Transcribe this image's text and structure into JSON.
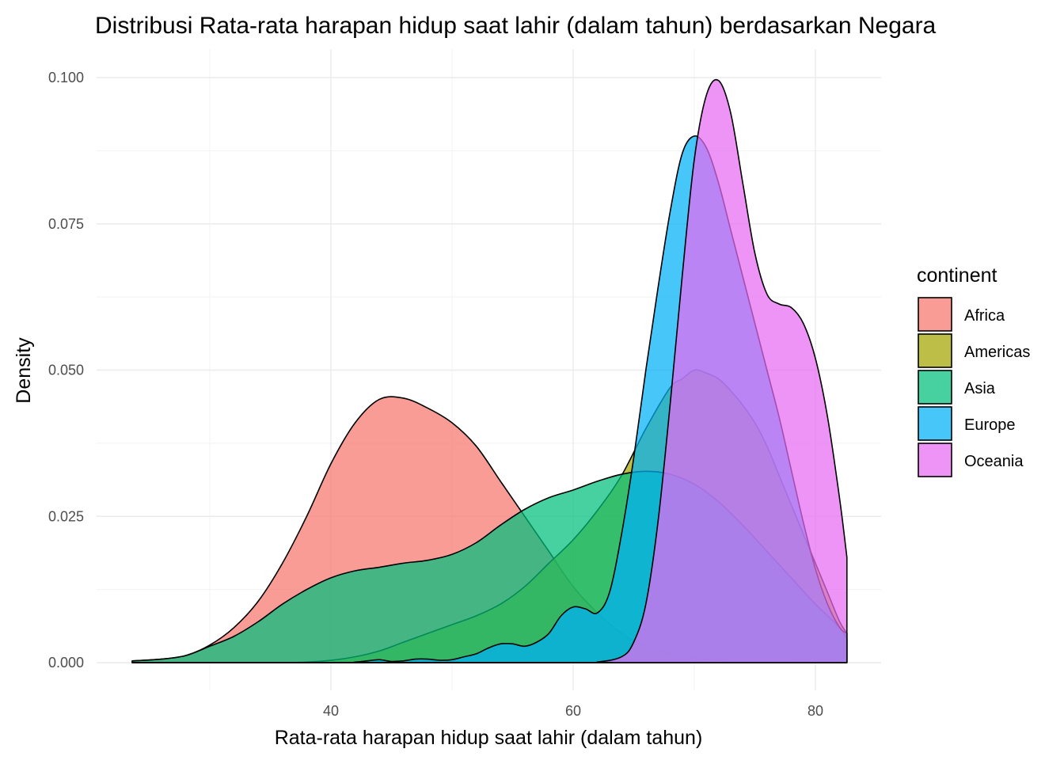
{
  "chart_data": {
    "type": "area",
    "title": "Distribusi Rata-rata harapan hidup saat lahir (dalam tahun) berdasarkan Negara",
    "xlabel": "Rata-rata harapan hidup saat lahir (dalam tahun)",
    "ylabel": "Density",
    "xlim": [
      23.6,
      82.6
    ],
    "ylim": [
      0,
      0.1
    ],
    "x_ticks": [
      40,
      60,
      80
    ],
    "x_tick_labels": [
      "40",
      "60",
      "80"
    ],
    "y_ticks": [
      0,
      0.025,
      0.05,
      0.075,
      0.1
    ],
    "y_tick_labels": [
      "0.000",
      "0.025",
      "0.050",
      "0.075",
      "0.100"
    ],
    "grid": true,
    "legend": {
      "title": "continent",
      "position": "right"
    },
    "series": [
      {
        "name": "Africa",
        "color": "#F8766D",
        "x": [
          23.6,
          26,
          28,
          30,
          32,
          34,
          36,
          38,
          40,
          42,
          44,
          46,
          48,
          50,
          52,
          54,
          56,
          58,
          60,
          62,
          64,
          66,
          68,
          70,
          72,
          74,
          76,
          78,
          80,
          82,
          82.6
        ],
        "y": [
          0.0003,
          0.0006,
          0.0012,
          0.003,
          0.006,
          0.0105,
          0.017,
          0.025,
          0.034,
          0.041,
          0.045,
          0.0452,
          0.0435,
          0.041,
          0.037,
          0.031,
          0.025,
          0.019,
          0.013,
          0.0085,
          0.005,
          0.0028,
          0.0015,
          0.0008,
          0.0004,
          0.0002,
          0.0001,
          5e-05,
          2e-05,
          1e-05,
          0
        ]
      },
      {
        "name": "Americas",
        "color": "#A3A500",
        "x": [
          23.6,
          30,
          36,
          38,
          40,
          42,
          44,
          46,
          48,
          50,
          52,
          54,
          56,
          58,
          60,
          62,
          64,
          66,
          68,
          69,
          70,
          71,
          72,
          73,
          74,
          75,
          76,
          77,
          78,
          79,
          80,
          81,
          82,
          82.6
        ],
        "y": [
          0,
          0,
          0,
          0.0001,
          0.0004,
          0.001,
          0.002,
          0.0035,
          0.005,
          0.0065,
          0.008,
          0.01,
          0.013,
          0.017,
          0.021,
          0.026,
          0.032,
          0.04,
          0.047,
          0.0485,
          0.05,
          0.0495,
          0.0485,
          0.0465,
          0.044,
          0.041,
          0.037,
          0.032,
          0.027,
          0.022,
          0.017,
          0.012,
          0.007,
          0.005
        ]
      },
      {
        "name": "Asia",
        "color": "#00BF7D",
        "x": [
          23.6,
          26,
          28,
          30,
          32,
          34,
          36,
          38,
          40,
          42,
          44,
          46,
          48,
          50,
          52,
          54,
          56,
          58,
          60,
          62,
          64,
          66,
          68,
          70,
          72,
          74,
          76,
          78,
          80,
          82,
          82.6
        ],
        "y": [
          0.0003,
          0.0006,
          0.0012,
          0.0028,
          0.0045,
          0.007,
          0.01,
          0.0125,
          0.0145,
          0.0157,
          0.0163,
          0.017,
          0.0175,
          0.0185,
          0.0205,
          0.0235,
          0.0262,
          0.0282,
          0.0295,
          0.031,
          0.0322,
          0.0327,
          0.0322,
          0.0305,
          0.0275,
          0.0235,
          0.019,
          0.0145,
          0.01,
          0.006,
          0.004
        ]
      },
      {
        "name": "Europe",
        "color": "#00B0F6",
        "x": [
          23.6,
          40,
          42,
          43,
          44,
          45,
          46,
          47,
          48,
          49,
          50,
          51,
          52,
          53,
          54,
          55,
          56,
          57,
          58,
          59,
          60,
          61,
          62,
          63,
          64,
          65,
          66,
          67,
          68,
          69,
          70,
          71,
          72,
          73,
          74,
          75,
          76,
          77,
          78,
          79,
          80,
          81,
          82,
          82.6
        ],
        "y": [
          0,
          0,
          0.0001,
          0.0003,
          0.0005,
          0.0002,
          0.0003,
          0.0006,
          0.0006,
          0.0004,
          0.0005,
          0.001,
          0.0015,
          0.0025,
          0.0032,
          0.0032,
          0.0028,
          0.0035,
          0.005,
          0.008,
          0.0095,
          0.0092,
          0.0085,
          0.012,
          0.022,
          0.035,
          0.05,
          0.064,
          0.077,
          0.087,
          0.09,
          0.088,
          0.082,
          0.074,
          0.066,
          0.058,
          0.05,
          0.042,
          0.033,
          0.024,
          0.016,
          0.01,
          0.006,
          0.005
        ]
      },
      {
        "name": "Oceania",
        "color": "#E76BF3",
        "x": [
          23.6,
          60,
          62,
          64,
          65,
          66,
          67,
          68,
          69,
          70,
          71,
          72,
          73,
          74,
          75,
          76,
          77,
          78,
          79,
          80,
          81,
          82,
          82.6
        ],
        "y": [
          0,
          0,
          0.0001,
          0.001,
          0.0035,
          0.01,
          0.024,
          0.044,
          0.066,
          0.086,
          0.097,
          0.0995,
          0.094,
          0.082,
          0.07,
          0.063,
          0.0613,
          0.0607,
          0.058,
          0.052,
          0.042,
          0.028,
          0.018
        ]
      }
    ]
  }
}
